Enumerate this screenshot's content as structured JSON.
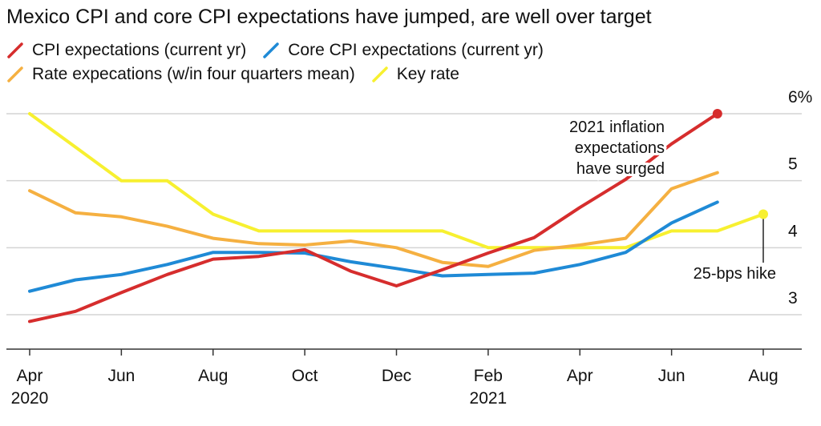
{
  "header": {
    "title": "Mexico CPI and core CPI expectations have jumped, are well over target"
  },
  "chart_data": {
    "type": "line",
    "title": "Mexico CPI and core CPI expectations have jumped, are well over target",
    "xlabel": "",
    "ylabel": "",
    "x_axis": {
      "ticks": [
        {
          "month": "Apr",
          "year": "2020",
          "x": 0
        },
        {
          "month": "Jun",
          "year": "",
          "x": 2
        },
        {
          "month": "Aug",
          "year": "",
          "x": 4
        },
        {
          "month": "Oct",
          "year": "",
          "x": 6
        },
        {
          "month": "Dec",
          "year": "",
          "x": 8
        },
        {
          "month": "Feb",
          "year": "2021",
          "x": 10
        },
        {
          "month": "Apr",
          "year": "",
          "x": 12
        },
        {
          "month": "Jun",
          "year": "",
          "x": 14
        },
        {
          "month": "Aug",
          "year": "",
          "x": 16
        }
      ],
      "range": [
        0,
        16.5
      ]
    },
    "y_axis": {
      "range": [
        2.5,
        6.3
      ],
      "ticks": [
        {
          "value": 6,
          "label": "6%"
        },
        {
          "value": 5,
          "label": "5"
        },
        {
          "value": 4,
          "label": "4"
        },
        {
          "value": 3,
          "label": "3"
        }
      ],
      "side": "right",
      "grid": true
    },
    "legend_position": "top-left",
    "series": [
      {
        "name": "CPI expectations (current yr)",
        "color": "#d62d2d",
        "x": [
          0,
          1,
          2,
          3,
          4,
          5,
          6,
          7,
          8,
          9,
          10,
          11,
          12,
          13,
          14,
          15
        ],
        "y": [
          2.9,
          3.05,
          3.33,
          3.6,
          3.83,
          3.87,
          3.97,
          3.65,
          3.43,
          3.67,
          3.92,
          4.15,
          4.6,
          5.02,
          5.55,
          6.0
        ]
      },
      {
        "name": "Core CPI expectations (current yr)",
        "color": "#1f8ad6",
        "x": [
          0,
          1,
          2,
          3,
          4,
          5,
          6,
          7,
          8,
          9,
          10,
          11,
          12,
          13,
          14,
          15
        ],
        "y": [
          3.35,
          3.52,
          3.6,
          3.75,
          3.93,
          3.93,
          3.92,
          3.79,
          3.69,
          3.58,
          3.6,
          3.62,
          3.75,
          3.93,
          4.37,
          4.68
        ]
      },
      {
        "name": "Rate expecations (w/in four quarters mean)",
        "color": "#f5b041",
        "x": [
          0,
          1,
          2,
          3,
          4,
          5,
          6,
          7,
          8,
          9,
          10,
          11,
          12,
          13,
          14,
          15
        ],
        "y": [
          4.85,
          4.52,
          4.46,
          4.32,
          4.14,
          4.06,
          4.04,
          4.1,
          4.0,
          3.78,
          3.72,
          3.96,
          4.04,
          4.14,
          4.88,
          5.12
        ]
      },
      {
        "name": "Key rate",
        "color": "#f7f030",
        "x": [
          0,
          1,
          2,
          2.5,
          3,
          4,
          5,
          6,
          7,
          8,
          9,
          10,
          11,
          12,
          13,
          14,
          15,
          16
        ],
        "y": [
          6.0,
          5.5,
          5.0,
          5.0,
          5.0,
          4.5,
          4.25,
          4.25,
          4.25,
          4.25,
          4.25,
          4.0,
          4.0,
          4.0,
          4.0,
          4.25,
          4.25,
          4.5
        ]
      }
    ],
    "annotations": {
      "inflation": [
        "2021 inflation",
        "expectations",
        "have surged"
      ],
      "hike": "25-bps hike"
    }
  }
}
